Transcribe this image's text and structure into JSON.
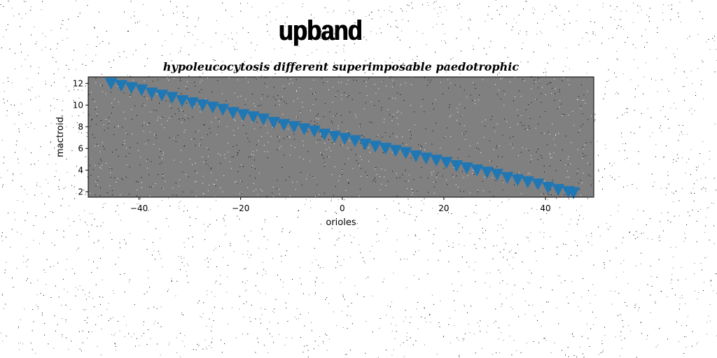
{
  "figure_title": "upband",
  "chart_data": {
    "type": "scatter",
    "title": "hypoleucocytosis different superimposable paedotrophic",
    "xlabel": "orioles",
    "ylabel": "mactroid",
    "xlim": [
      -50,
      49.5
    ],
    "ylim": [
      1.5,
      12.6
    ],
    "x_ticks": [
      -40,
      -20,
      0,
      20,
      40
    ],
    "y_ticks": [
      2,
      4,
      6,
      8,
      10,
      12
    ],
    "x_tick_labels": [
      "−40",
      "−20",
      "0",
      "20",
      "40"
    ],
    "y_tick_labels": [
      "2",
      "4",
      "6",
      "8",
      "10",
      "12"
    ],
    "marker": "triangle-down",
    "color": "#1f77b4",
    "plot_background": "#808080",
    "grid": false,
    "series": [
      {
        "x": [
          -45.5,
          -43.5,
          -41.5,
          -39.5,
          -37.5,
          -35.5,
          -33.5,
          -31.5,
          -29.5,
          -27.5,
          -25.5,
          -23.5,
          -21.5,
          -19.5,
          -17.5,
          -15.5,
          -13.5,
          -11.5,
          -9.5,
          -7.5,
          -5.5,
          -3.5,
          -1.5,
          0.5,
          2.5,
          4.5,
          6.5,
          8.5,
          10.5,
          12.5,
          14.5,
          16.5,
          18.5,
          20.5,
          22.5,
          24.5,
          26.5,
          28.5,
          30.5,
          32.5,
          34.5,
          36.5,
          38.5,
          40.5,
          42.5,
          44.5,
          45.5
        ],
        "y": [
          12.0,
          11.8,
          11.6,
          11.4,
          11.1,
          10.9,
          10.7,
          10.4,
          10.2,
          10.0,
          9.8,
          9.6,
          9.3,
          9.1,
          8.9,
          8.7,
          8.4,
          8.2,
          8.0,
          7.8,
          7.6,
          7.3,
          7.1,
          6.9,
          6.7,
          6.4,
          6.2,
          6.0,
          5.8,
          5.6,
          5.3,
          5.1,
          4.9,
          4.7,
          4.4,
          4.2,
          4.0,
          3.8,
          3.6,
          3.3,
          3.1,
          2.9,
          2.7,
          2.4,
          2.2,
          2.0,
          1.9
        ]
      }
    ]
  }
}
